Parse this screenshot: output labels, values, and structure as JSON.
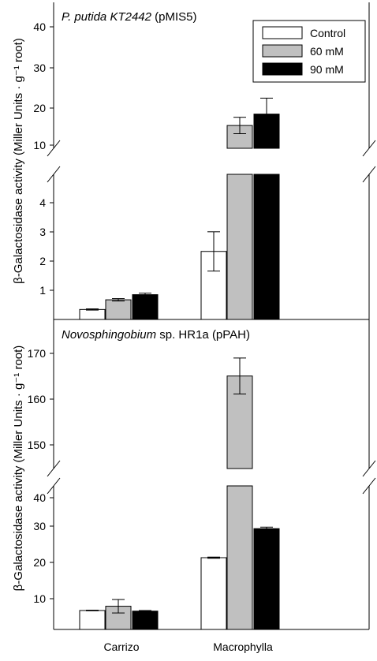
{
  "chart_data": [
    {
      "type": "bar",
      "panel": "top",
      "title": "P. putida KT2442 (pMIS5)",
      "title_parts": [
        {
          "text": "P. putida KT2442",
          "italic": true
        },
        {
          "text": " (pMIS5)",
          "italic": false
        }
      ],
      "ylabel": "β-Galactosidase activity (Miller Units · g⁻¹ root)",
      "categories": [
        "Carrizo",
        "Macrophylla"
      ],
      "series": [
        {
          "name": "Control",
          "color": "#ffffff",
          "values": [
            0.33,
            2.25
          ],
          "errors": [
            0.02,
            0.65
          ]
        },
        {
          "name": "60 mM",
          "color": "#c0c0c0",
          "values": [
            0.65,
            14.0
          ],
          "errors": [
            0.04,
            1.8
          ]
        },
        {
          "name": "90 mM",
          "color": "#000000",
          "values": [
            0.82,
            16.5
          ],
          "errors": [
            0.05,
            3.5
          ]
        }
      ],
      "axis_break": {
        "lower": [
          0,
          4.8
        ],
        "upper": [
          9,
          41
        ]
      },
      "lower_ticks": [
        "1",
        "2",
        "3",
        "4"
      ],
      "upper_ticks": [
        "10",
        "20",
        "30",
        "40"
      ],
      "legend": [
        "Control",
        "60 mM",
        "90 mM"
      ],
      "legend_position": "top-right",
      "grid": false
    },
    {
      "type": "bar",
      "panel": "bottom",
      "title": "Novosphingobium sp. HR1a (pPAH)",
      "title_parts": [
        {
          "text": "Novosphingobium",
          "italic": true
        },
        {
          "text": " sp. HR1a (pPAH)",
          "italic": false
        }
      ],
      "ylabel": "β-Galactosidase activity (Miller Units · g⁻¹ root)",
      "categories": [
        "Carrizo",
        "Macrophylla"
      ],
      "series": [
        {
          "name": "Control",
          "color": "#ffffff",
          "values": [
            6.2,
            23.5
          ],
          "errors": [
            0.1,
            0.2
          ]
        },
        {
          "name": "60 mM",
          "color": "#c0c0c0",
          "values": [
            7.6,
            162.0
          ],
          "errors": [
            2.2,
            3.5
          ]
        },
        {
          "name": "90 mM",
          "color": "#000000",
          "values": [
            6.0,
            33.0
          ],
          "errors": [
            0.2,
            0.5
          ]
        }
      ],
      "axis_break": {
        "lower": [
          0,
          47
        ],
        "upper": [
          144,
          173
        ]
      },
      "lower_ticks": [
        "10",
        "20",
        "30",
        "40"
      ],
      "upper_ticks": [
        "150",
        "160",
        "170"
      ],
      "grid": false
    }
  ]
}
